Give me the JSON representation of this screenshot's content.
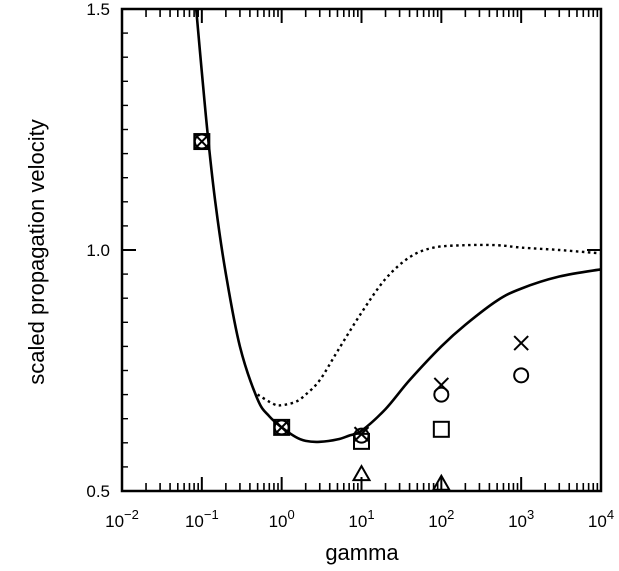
{
  "chart_data": {
    "type": "scatter",
    "xlabel": "gamma",
    "ylabel": "scaled propagation velocity",
    "x_scale": "log",
    "xlim": [
      0.01,
      10000
    ],
    "ylim": [
      0.5,
      1.5
    ],
    "x_ticks": [
      {
        "value": 0.01,
        "base": "10",
        "exp": "−2"
      },
      {
        "value": 0.1,
        "base": "10",
        "exp": "−1"
      },
      {
        "value": 1,
        "base": "10",
        "exp": "0"
      },
      {
        "value": 10,
        "base": "10",
        "exp": "1"
      },
      {
        "value": 100,
        "base": "10",
        "exp": "2"
      },
      {
        "value": 1000,
        "base": "10",
        "exp": "3"
      },
      {
        "value": 10000,
        "base": "10",
        "exp": "4"
      }
    ],
    "y_ticks": [
      {
        "value": 0.5,
        "label": "0.5"
      },
      {
        "value": 1.0,
        "label": "1.0"
      },
      {
        "value": 1.5,
        "label": "1.5"
      }
    ],
    "grid": false,
    "curves": [
      {
        "style": "solid",
        "points": [
          [
            0.085,
            1.5
          ],
          [
            0.1,
            1.37
          ],
          [
            0.12,
            1.23
          ],
          [
            0.15,
            1.09
          ],
          [
            0.2,
            0.95
          ],
          [
            0.3,
            0.8
          ],
          [
            0.5,
            0.69
          ],
          [
            0.7,
            0.655
          ],
          [
            1,
            0.632
          ],
          [
            1.5,
            0.612
          ],
          [
            2,
            0.604
          ],
          [
            3,
            0.602
          ],
          [
            5,
            0.607
          ],
          [
            7,
            0.615
          ],
          [
            10,
            0.625
          ],
          [
            20,
            0.67
          ],
          [
            40,
            0.73
          ],
          [
            100,
            0.8
          ],
          [
            200,
            0.845
          ],
          [
            500,
            0.895
          ],
          [
            1000,
            0.92
          ],
          [
            3000,
            0.945
          ],
          [
            10000,
            0.96
          ]
        ]
      },
      {
        "style": "dotted",
        "points": [
          [
            0.5,
            0.7
          ],
          [
            0.8,
            0.68
          ],
          [
            1,
            0.678
          ],
          [
            1.5,
            0.685
          ],
          [
            2,
            0.7
          ],
          [
            3,
            0.73
          ],
          [
            5,
            0.79
          ],
          [
            10,
            0.87
          ],
          [
            20,
            0.94
          ],
          [
            40,
            0.985
          ],
          [
            80,
            1.005
          ],
          [
            200,
            1.01
          ],
          [
            500,
            1.01
          ],
          [
            1000,
            1.005
          ],
          [
            3000,
            1.0
          ],
          [
            10000,
            0.993
          ]
        ]
      }
    ],
    "markers": [
      {
        "symbol": "square",
        "points": [
          [
            0.1,
            1.225
          ],
          [
            1,
            0.632
          ],
          [
            10,
            0.603
          ],
          [
            100,
            0.628
          ]
        ]
      },
      {
        "symbol": "cross",
        "points": [
          [
            0.1,
            1.225
          ],
          [
            1,
            0.632
          ],
          [
            10,
            0.618
          ],
          [
            100,
            0.72
          ],
          [
            1000,
            0.807
          ]
        ]
      },
      {
        "symbol": "circle",
        "points": [
          [
            0.1,
            1.225
          ],
          [
            1,
            0.632
          ],
          [
            10,
            0.615
          ],
          [
            100,
            0.7
          ],
          [
            1000,
            0.74
          ]
        ]
      },
      {
        "symbol": "triangle",
        "points": [
          [
            10,
            0.535
          ],
          [
            100,
            0.515
          ]
        ]
      }
    ]
  }
}
